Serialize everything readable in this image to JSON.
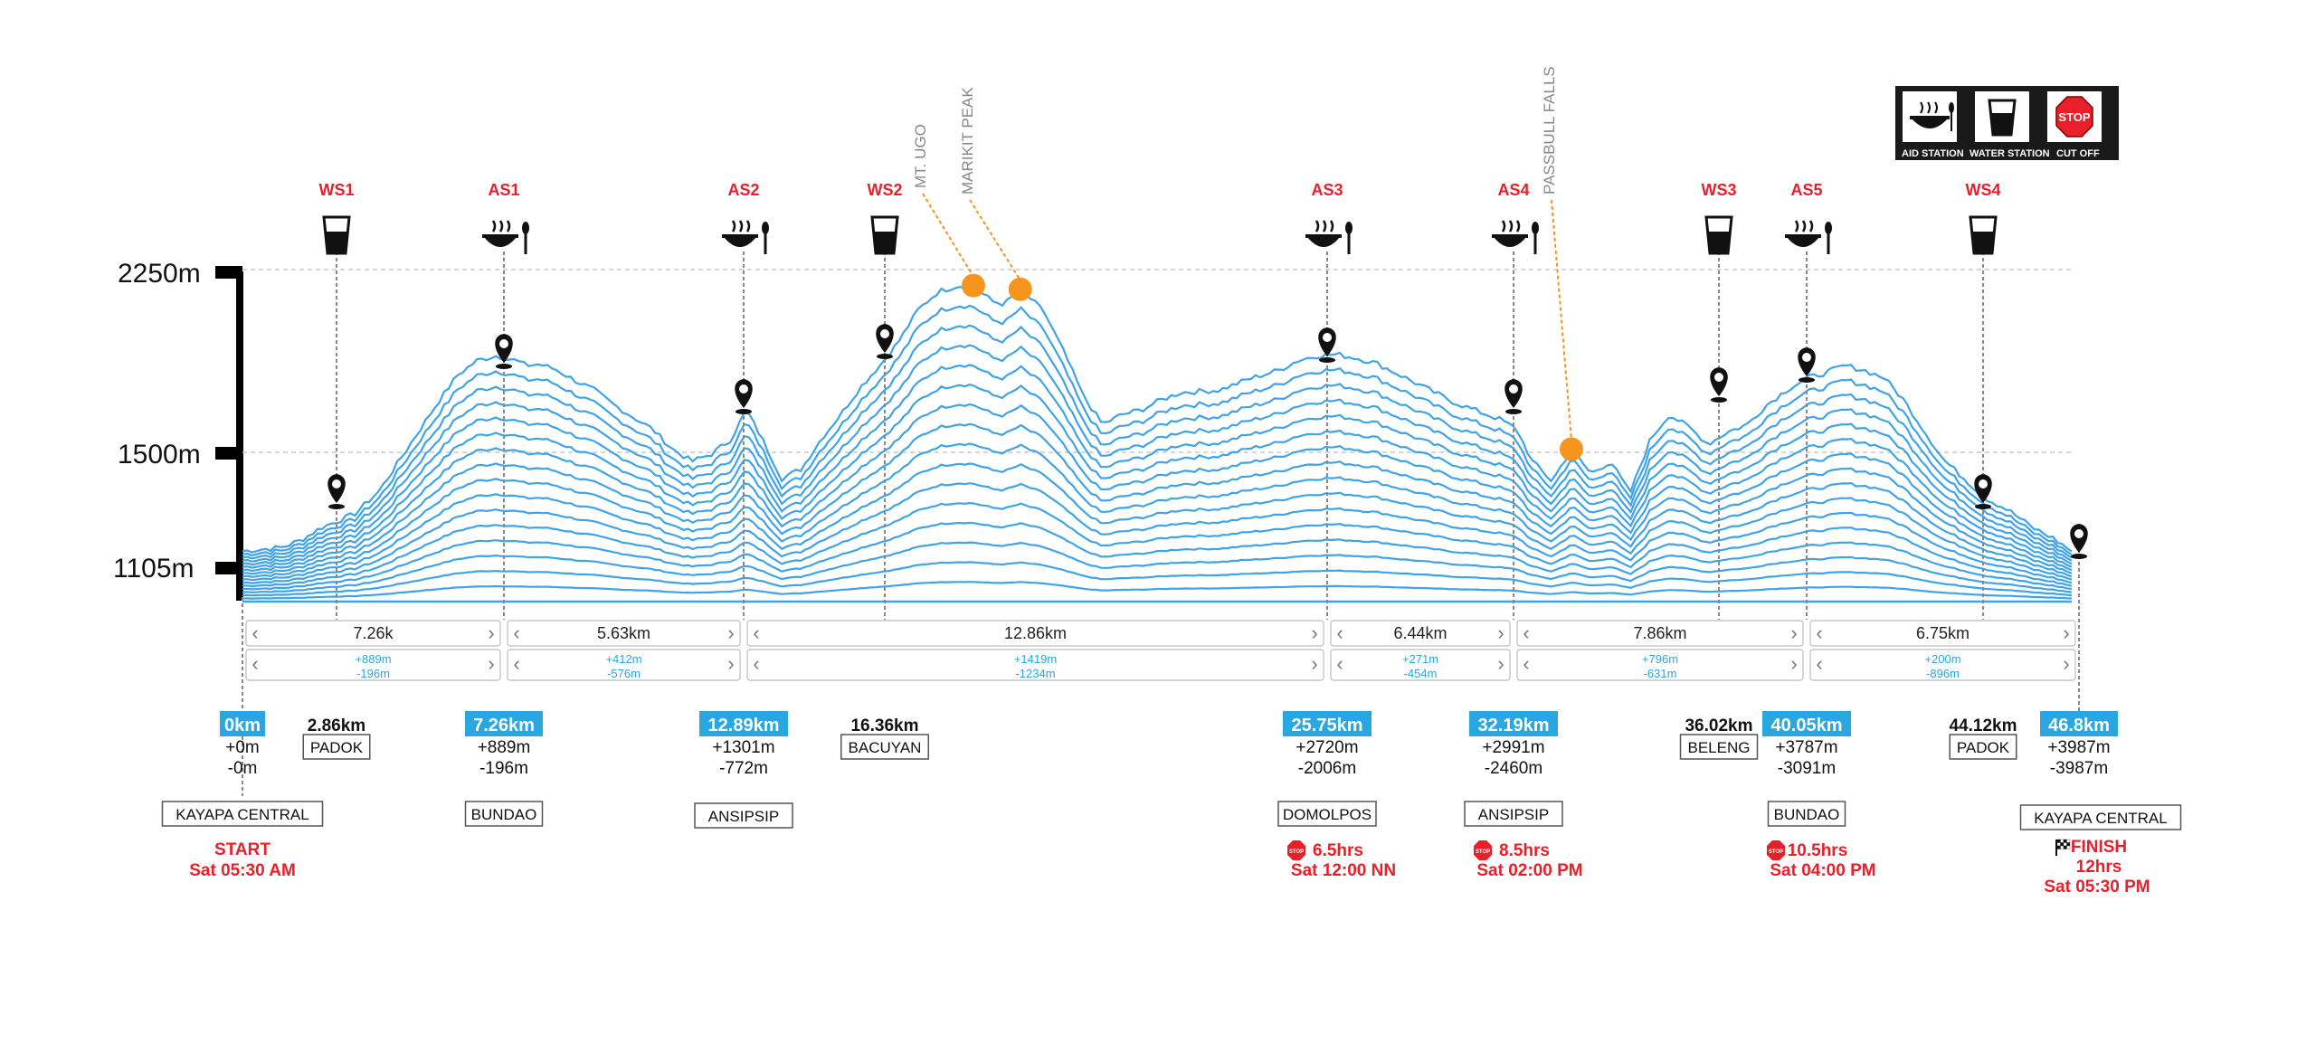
{
  "colors": {
    "profile": "#3fa3e6",
    "accent_red": "#e8202a",
    "badge_blue": "#2aa6e0",
    "peak_orange": "#f7941d",
    "legend_bg": "#1a1a1a"
  },
  "legend": {
    "aid": "AID STATION",
    "water": "WATER STATION",
    "cutoff": "CUT OFF",
    "stop": "STOP"
  },
  "elevation_axis": {
    "ticks": [
      "2250m",
      "1500m",
      "1105m"
    ]
  },
  "peaks": [
    {
      "label": "MT. UGO",
      "km": 18.7,
      "elev_m": 2185
    },
    {
      "label": "MARIKIT PEAK",
      "km": 19.9,
      "elev_m": 2170
    },
    {
      "label": "PASSBULL FALLS",
      "km": 34.0,
      "elev_m": 1520
    }
  ],
  "stations": [
    {
      "id": "WS1",
      "type": "water",
      "km_label": "2.86km",
      "place": "PADOK"
    },
    {
      "id": "AS1",
      "type": "aid",
      "km_label": "7.26km",
      "gain": "+889m",
      "loss": "-196m",
      "place": "BUNDAO"
    },
    {
      "id": "AS2",
      "type": "aid",
      "km_label": "12.89km",
      "gain": "+1301m",
      "loss": "-772m",
      "place": "ANSIPSIP"
    },
    {
      "id": "WS2",
      "type": "water",
      "km_label": "16.36km",
      "place": "BACUYAN"
    },
    {
      "id": "AS3",
      "type": "aid",
      "km_label": "25.75km",
      "gain": "+2720m",
      "loss": "-2006m",
      "place": "DOMOLPOS",
      "cutoff": "6.5hrs",
      "cutoff_time": "Sat 12:00 NN"
    },
    {
      "id": "AS4",
      "type": "aid",
      "km_label": "32.19km",
      "gain": "+2991m",
      "loss": "-2460m",
      "place": "ANSIPSIP",
      "cutoff": "8.5hrs",
      "cutoff_time": "Sat 02:00 PM"
    },
    {
      "id": "WS3",
      "type": "water",
      "km_label": "36.02km",
      "place": "BELENG"
    },
    {
      "id": "AS5",
      "type": "aid",
      "km_label": "40.05km",
      "gain": "+3787m",
      "loss": "-3091m",
      "place": "BUNDAO",
      "cutoff": "10.5hrs",
      "cutoff_time": "Sat 04:00 PM"
    },
    {
      "id": "WS4",
      "type": "water",
      "km_label": "44.12km",
      "place": "PADOK"
    }
  ],
  "start": {
    "km_label": "0km",
    "gain": "+0m",
    "loss": "-0m",
    "place": "KAYAPA CENTRAL",
    "label": "START",
    "time": "Sat 05:30 AM"
  },
  "finish": {
    "km_label": "46.8km",
    "gain": "+3987m",
    "loss": "-3987m",
    "place": "KAYAPA CENTRAL",
    "label": "FINISH",
    "hours": "12hrs",
    "time": "Sat 05:30 PM"
  },
  "segments": [
    {
      "distance": "7.26k",
      "gain": "+889m",
      "loss": "-196m"
    },
    {
      "distance": "5.63km",
      "gain": "+412m",
      "loss": "-576m"
    },
    {
      "distance": "12.86km",
      "gain": "+1419m",
      "loss": "-1234m"
    },
    {
      "distance": "6.44km",
      "gain": "+271m",
      "loss": "-454m"
    },
    {
      "distance": "7.86km",
      "gain": "+796m",
      "loss": "-631m"
    },
    {
      "distance": "6.75km",
      "gain": "+200m",
      "loss": "-896m"
    }
  ],
  "chart_data": {
    "type": "line",
    "xlabel": "",
    "ylabel": "",
    "x_unit": "km",
    "y_unit": "m",
    "xlim": [
      0,
      46.8
    ],
    "ylim": [
      900,
      2250
    ],
    "series": [
      {
        "x": [
          0,
          1,
          1.5,
          2,
          2.86,
          3.5,
          4,
          4.5,
          5,
          5.5,
          6,
          6.5,
          7,
          7.26,
          7.6,
          8,
          8.5,
          9,
          9.5,
          10,
          10.5,
          11,
          11.5,
          12,
          12.5,
          12.89,
          13.3,
          13.8,
          14.3,
          14.8,
          15.3,
          15.8,
          16.36,
          16.8,
          17.3,
          17.8,
          18.3,
          18.7,
          19.2,
          19.5,
          19.9,
          20.5,
          21,
          21.5,
          22,
          22.5,
          23,
          23.5,
          24,
          24.5,
          25,
          25.75,
          26.5,
          27,
          27.5,
          28,
          28.5,
          29,
          29.5,
          30,
          30.5,
          31,
          31.5,
          32.19,
          32.6,
          33,
          33.5,
          34,
          34.5,
          35,
          35.5,
          36.02,
          36.5,
          37,
          37.5,
          38,
          38.5,
          39,
          39.5,
          40.05,
          40.5,
          41,
          41.5,
          42,
          42.5,
          43,
          43.5,
          44.12,
          44.6,
          45.2,
          45.8,
          46.3,
          46.8
        ],
        "values": [
          1105,
          1120,
          1150,
          1200,
          1255,
          1350,
          1470,
          1590,
          1710,
          1820,
          1880,
          1900,
          1880,
          1860,
          1865,
          1845,
          1800,
          1760,
          1700,
          1650,
          1600,
          1520,
          1470,
          1500,
          1560,
          1680,
          1560,
          1400,
          1440,
          1560,
          1660,
          1770,
          1870,
          1960,
          2090,
          2160,
          2185,
          2180,
          2120,
          2110,
          2170,
          2080,
          1920,
          1740,
          1620,
          1660,
          1680,
          1720,
          1750,
          1755,
          1760,
          1805,
          1840,
          1880,
          1900,
          1905,
          1890,
          1870,
          1830,
          1790,
          1750,
          1710,
          1680,
          1640,
          1600,
          1470,
          1390,
          1520,
          1420,
          1470,
          1340,
          1560,
          1660,
          1610,
          1540,
          1590,
          1620,
          1700,
          1760,
          1810,
          1830,
          1860,
          1840,
          1810,
          1720,
          1600,
          1480,
          1390,
          1320,
          1270,
          1200,
          1160,
          1105
        ]
      }
    ]
  }
}
